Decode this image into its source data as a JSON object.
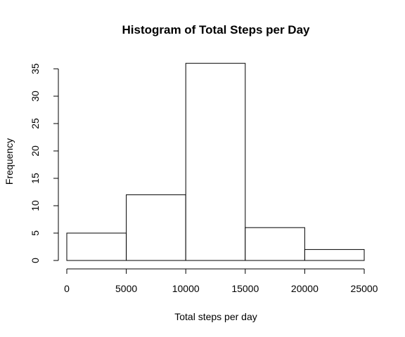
{
  "chart_data": {
    "type": "bar",
    "title": "Histogram of Total Steps per Day",
    "xlabel": "Total steps per day",
    "ylabel": "Frequency",
    "bins": [
      {
        "x0": 0,
        "x1": 5000,
        "count": 5
      },
      {
        "x0": 5000,
        "x1": 10000,
        "count": 12
      },
      {
        "x0": 10000,
        "x1": 15000,
        "count": 36
      },
      {
        "x0": 15000,
        "x1": 20000,
        "count": 6
      },
      {
        "x0": 20000,
        "x1": 25000,
        "count": 2
      }
    ],
    "xlim": [
      0,
      25000
    ],
    "ylim": [
      0,
      35
    ],
    "x_ticks": [
      0,
      5000,
      10000,
      15000,
      20000,
      25000
    ],
    "y_ticks": [
      0,
      5,
      10,
      15,
      20,
      25,
      30,
      35
    ],
    "grid": false,
    "bar_fill": "#ffffff",
    "bar_stroke": "#000000"
  }
}
